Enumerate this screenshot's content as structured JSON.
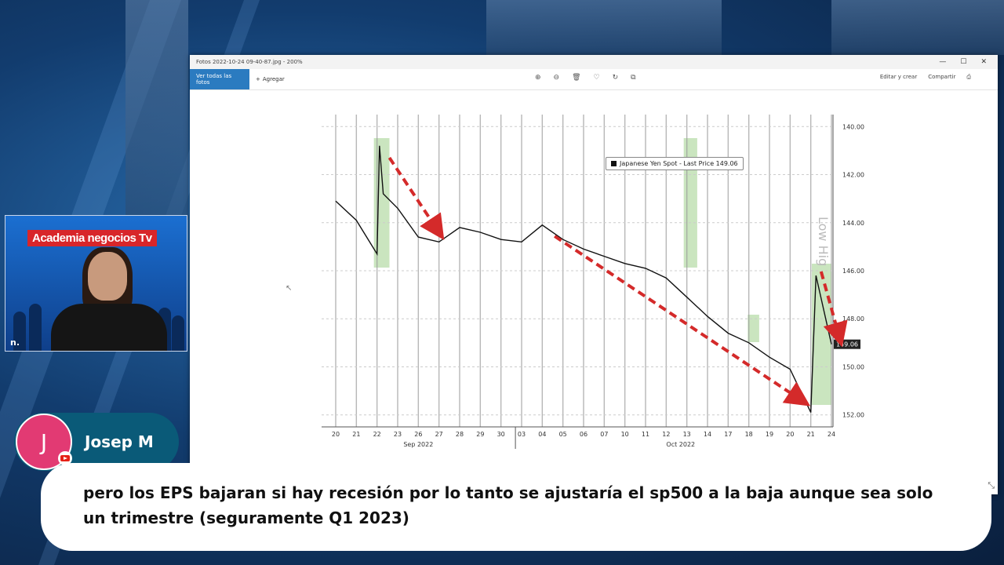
{
  "viewer": {
    "title": "Fotos 2022-10-24 09-40-87.jpg  -  200%",
    "toolbar_primary": "Ver todas las fotos",
    "toolbar_add": "Agregar",
    "edit_label": "Editar y crear",
    "share_label": "Compartir",
    "window_controls": [
      "—",
      "☐",
      "✕"
    ]
  },
  "chart_data": {
    "type": "line",
    "series": [
      {
        "name": "Japanese Yen Spot - Last Price",
        "points": [
          [
            "2022-09-20",
            143.1
          ],
          [
            "2022-09-21",
            143.9
          ],
          [
            "2022-09-22",
            145.3
          ],
          [
            "2022-09-22b",
            140.8
          ],
          [
            "2022-09-22c",
            142.8
          ],
          [
            "2022-09-23",
            143.4
          ],
          [
            "2022-09-26",
            144.6
          ],
          [
            "2022-09-27",
            144.8
          ],
          [
            "2022-09-28",
            144.2
          ],
          [
            "2022-09-29",
            144.4
          ],
          [
            "2022-09-30",
            144.7
          ],
          [
            "2022-10-03",
            144.8
          ],
          [
            "2022-10-04",
            144.1
          ],
          [
            "2022-10-05",
            144.7
          ],
          [
            "2022-10-06",
            145.1
          ],
          [
            "2022-10-07",
            145.4
          ],
          [
            "2022-10-10",
            145.7
          ],
          [
            "2022-10-11",
            145.9
          ],
          [
            "2022-10-12",
            146.3
          ],
          [
            "2022-10-13",
            147.1
          ],
          [
            "2022-10-14",
            147.9
          ],
          [
            "2022-10-17",
            148.6
          ],
          [
            "2022-10-18",
            149.0
          ],
          [
            "2022-10-19",
            149.6
          ],
          [
            "2022-10-20",
            150.1
          ],
          [
            "2022-10-21",
            151.9
          ],
          [
            "2022-10-21b",
            146.2
          ],
          [
            "2022-10-24",
            149.06
          ]
        ]
      }
    ],
    "legend": "Japanese Yen Spot - Last Price 149.06",
    "y_ticks": [
      "140.00",
      "142.00",
      "144.00",
      "146.00",
      "148.00",
      "150.00",
      "152.00"
    ],
    "y_inverted": true,
    "ylim": [
      139.5,
      152.5
    ],
    "last_price_label": "149.06",
    "x_ticks": [
      "20",
      "21",
      "22",
      "23",
      "26",
      "27",
      "28",
      "29",
      "30",
      "03",
      "04",
      "05",
      "06",
      "07",
      "10",
      "11",
      "12",
      "13",
      "14",
      "17",
      "18",
      "19",
      "20",
      "21",
      "24"
    ],
    "month_labels": [
      "Sep 2022",
      "Oct 2022"
    ],
    "side_watermark": "Low  Hig",
    "grid": true,
    "annotations": "red dashed arrows marking downward (yen strengthening) moves; green shaded bars marking intervention spikes"
  },
  "webcam": {
    "title": "Academia negocios Tv",
    "logo": "n."
  },
  "chat": {
    "author_initial": "J",
    "author_name": "Josep M",
    "message": "pero los EPS bajaran si hay recesión por lo tanto se ajustaría el sp500 a la baja aunque sea solo un trimestre (seguramente Q1 2023)"
  },
  "colors": {
    "accent": "#2b7bc0",
    "arrow": "#d42a2a",
    "highlight": "#9fd08a",
    "avatar": "#e23a73"
  }
}
